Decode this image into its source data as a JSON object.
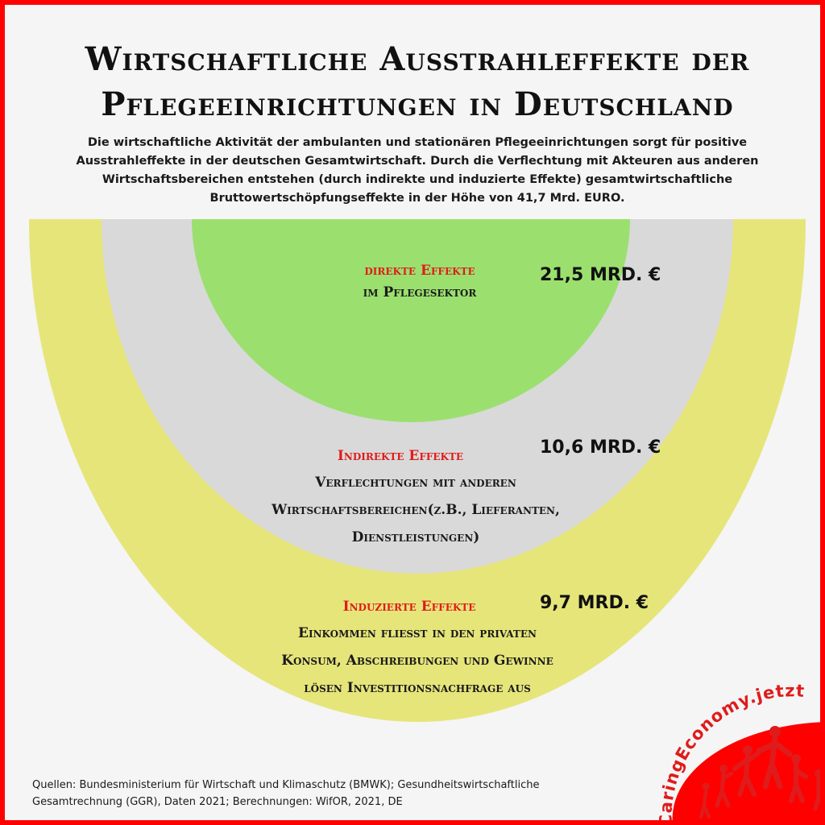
{
  "title_line1": "Wirtschaftliche Ausstrahleffekte der",
  "title_line2": "Pflegeeinrichtungen in Deutschland",
  "intro": "Die wirtschaftliche Aktivität der ambulanten und stationären Pflegeeinrichtungen sorgt für positive Ausstrahleffekte in der deutschen Gesamtwirtschaft. Durch die Verflechtung mit Akteuren aus anderen Wirtschaftsbereichen entstehen (durch indirekte und induzierte Effekte) gesamtwirtschaftliche Bruttowertschöpfungseffekte in der Höhe von 41,7 Mrd. EURO.",
  "direct": {
    "label": "direkte Effekte",
    "desc": "im Pflegesektor",
    "value": "21,5  MRD. €"
  },
  "indirect": {
    "label": "Indirekte Effekte",
    "desc1": "Verflechtungen mit anderen",
    "desc2": "Wirtschaftsbereichen(z.B., Lieferanten,",
    "desc3": "Dienstleistungen)",
    "value": "10,6  MRD. €"
  },
  "induced": {
    "label": "Induzierte Effekte",
    "desc1": "Einkommen fließt in den privaten",
    "desc2": "Konsum, Abschreibungen und Gewinne",
    "desc3": "lösen Investitionsnachfrage aus",
    "value": "9,7 MRD. €"
  },
  "sources_line1": "Quellen: Bundesministerium für Wirtschaft und Klimaschutz (BMWK); Gesundheitswirtschaftliche",
  "sources_line2": "Gesamtrechnung (GGR), Daten 2021; Berechnungen: WifOR, 2021, DE",
  "logo_text": "CaringEconomy.jetzt",
  "colors": {
    "border": "#ff0000",
    "yellow": "#e6e57a",
    "gray": "#d9d9d9",
    "green": "#9be06f",
    "accent_red": "#e01b1b"
  }
}
